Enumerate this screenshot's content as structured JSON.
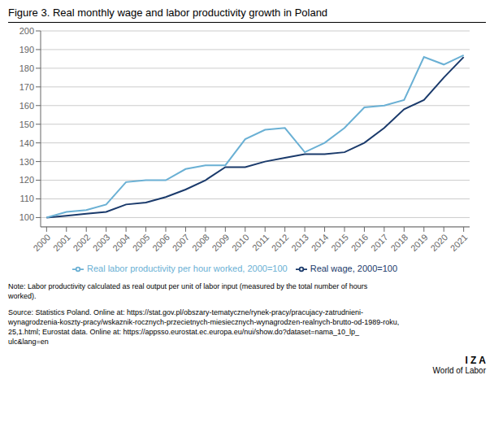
{
  "chart_data": {
    "type": "line",
    "title": "Figure 3. Real monthly wage and labor productivity growth in Poland",
    "x": [
      2000,
      2001,
      2002,
      2003,
      2004,
      2005,
      2006,
      2007,
      2008,
      2009,
      2010,
      2011,
      2012,
      2013,
      2014,
      2015,
      2016,
      2017,
      2018,
      2019,
      2020,
      2021
    ],
    "series": [
      {
        "name": "Real wage, 2000=100",
        "color": "#1a3a6b",
        "values": [
          100,
          101,
          102,
          103,
          107,
          108,
          111,
          115,
          120,
          127,
          127,
          130,
          132,
          134,
          134,
          135,
          140,
          148,
          158,
          163,
          175,
          186
        ]
      },
      {
        "name": "Real labor productivity per hour worked, 2000=100",
        "color": "#6ab0d4",
        "values": [
          100,
          103,
          104,
          107,
          119,
          120,
          120,
          126,
          128,
          128,
          142,
          147,
          148,
          135,
          140,
          148,
          159,
          160,
          163,
          186,
          182,
          187
        ]
      }
    ],
    "xlim": [
      1999.7,
      2021.3
    ],
    "xticks": [
      2000,
      2001,
      2002,
      2003,
      2004,
      2005,
      2006,
      2007,
      2008,
      2009,
      2010,
      2011,
      2012,
      2013,
      2014,
      2015,
      2016,
      2017,
      2018,
      2019,
      2020,
      2021
    ],
    "ylim": [
      95,
      200
    ],
    "yticks": [
      100,
      110,
      120,
      130,
      140,
      150,
      160,
      170,
      180,
      190,
      200
    ],
    "grid": true,
    "legend": "bottom",
    "annotations": [
      "Note: Labor productivity calculated as real output per unit of labor input (measured by the total number of hours\nworked).",
      "Source: Statistics Poland. Online at: https://stat.gov.pl/obszary-tematyczne/rynek-pracy/pracujacy-zatrudnieni-\nwynagrodzenia-koszty-pracy/wskaznik-rocznych-przecietnych-miesiecznych-wynagrodzen-realnych-brutto-od-1989-roku,\n25,1.html; Eurostat data. Online at: https://appsso.eurostat.ec.europa.eu/nui/show.do?dataset=nama_10_lp_\nulc&lang=en",
      "I Z A",
      "World of Labor"
    ]
  }
}
